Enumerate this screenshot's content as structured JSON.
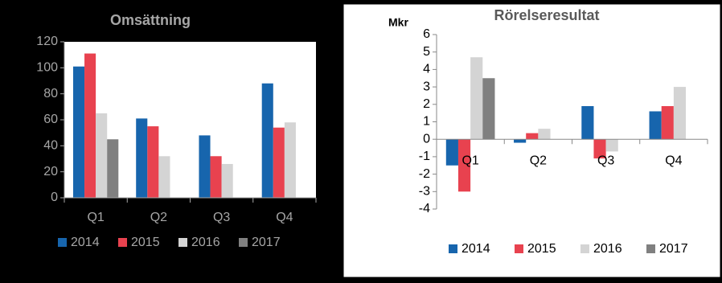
{
  "chart_data": [
    {
      "type": "bar",
      "title": "Omsättning",
      "categories": [
        "Q1",
        "Q2",
        "Q3",
        "Q4"
      ],
      "series": [
        {
          "name": "2014",
          "color": "#1765ad",
          "values": [
            101,
            61,
            48,
            88
          ]
        },
        {
          "name": "2015",
          "color": "#e8424f",
          "values": [
            111,
            55,
            32,
            54
          ]
        },
        {
          "name": "2016",
          "color": "#d4d4d4",
          "values": [
            65,
            32,
            26,
            58
          ]
        },
        {
          "name": "2017",
          "color": "#808080",
          "values": [
            45,
            null,
            null,
            null
          ]
        }
      ],
      "ylim": [
        0,
        120
      ],
      "yticks": [
        0,
        20,
        40,
        60,
        80,
        100,
        120
      ],
      "grid": false
    },
    {
      "type": "bar",
      "title": "Rörelseresultat",
      "y_label": "Mkr",
      "categories": [
        "Q1",
        "Q2",
        "Q3",
        "Q4"
      ],
      "series": [
        {
          "name": "2014",
          "color": "#1765ad",
          "values": [
            -1.5,
            -0.2,
            1.9,
            1.6
          ]
        },
        {
          "name": "2015",
          "color": "#e8424f",
          "values": [
            -3,
            0.35,
            -1.1,
            1.9
          ]
        },
        {
          "name": "2016",
          "color": "#d4d4d4",
          "values": [
            4.7,
            0.6,
            -0.7,
            3.0
          ]
        },
        {
          "name": "2017",
          "color": "#808080",
          "values": [
            3.5,
            null,
            null,
            null
          ]
        }
      ],
      "ylim": [
        -4,
        6
      ],
      "yticks": [
        -4,
        -3,
        -2,
        -1,
        0,
        1,
        2,
        3,
        4,
        5,
        6
      ],
      "grid": false
    }
  ]
}
